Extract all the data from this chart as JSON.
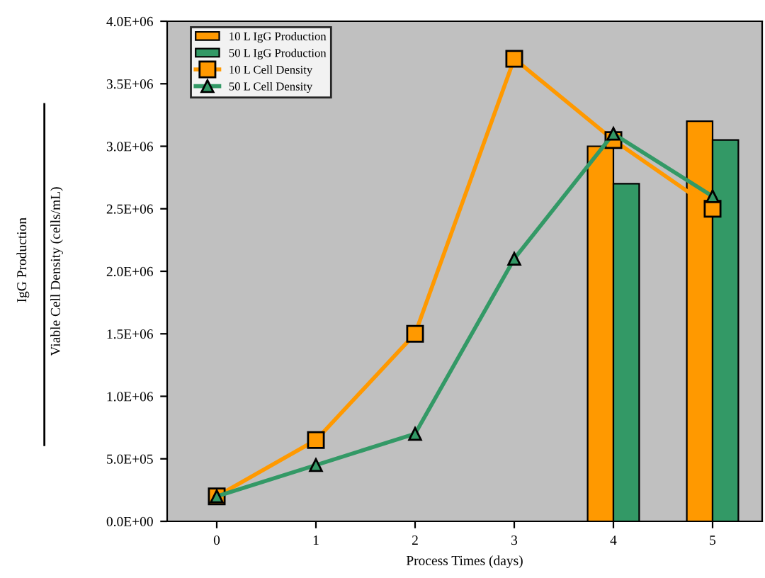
{
  "chart_data": {
    "type": "bar",
    "xlabel": "Process Times (days)",
    "ylabel": "Viable Cell Density (cells/mL)",
    "annotations": [
      "IgG Production"
    ],
    "categories": [
      "0",
      "1",
      "2",
      "3",
      "4",
      "5"
    ],
    "series": [
      {
        "name": "10 L IgG Production",
        "color": "#ff9900",
        "values": [
          null,
          null,
          null,
          null,
          3000000,
          3200000
        ]
      },
      {
        "name": "50 L IgG Production",
        "color": "#339966",
        "values": [
          null,
          null,
          null,
          null,
          2700000,
          3050000
        ]
      },
      {
        "name": "10 L Cell Density",
        "type": "line",
        "color": "#ff9900",
        "marker": "square",
        "values": [
          200000,
          650000,
          1500000,
          3700000,
          3050000,
          2500000
        ]
      },
      {
        "name": "50 L Cell Density",
        "type": "line",
        "color": "#339966",
        "marker": "triangle",
        "values": [
          200000,
          450000,
          700000,
          2100000,
          3100000,
          2600000
        ]
      }
    ],
    "ylim": [
      0,
      4000000
    ],
    "yticks": [
      {
        "value": 0,
        "label": "0.0E+00"
      },
      {
        "value": 500000,
        "label": "5.0E+05"
      },
      {
        "value": 1000000,
        "label": "1.0E+06"
      },
      {
        "value": 1500000,
        "label": "1.5E+06"
      },
      {
        "value": 2000000,
        "label": "2.0E+06"
      },
      {
        "value": 2500000,
        "label": "2.5E+06"
      },
      {
        "value": 3000000,
        "label": "3.0E+06"
      },
      {
        "value": 3500000,
        "label": "3.5E+06"
      },
      {
        "value": 4000000,
        "label": "4.0E+06"
      }
    ],
    "grid": false,
    "legend": "top left"
  }
}
